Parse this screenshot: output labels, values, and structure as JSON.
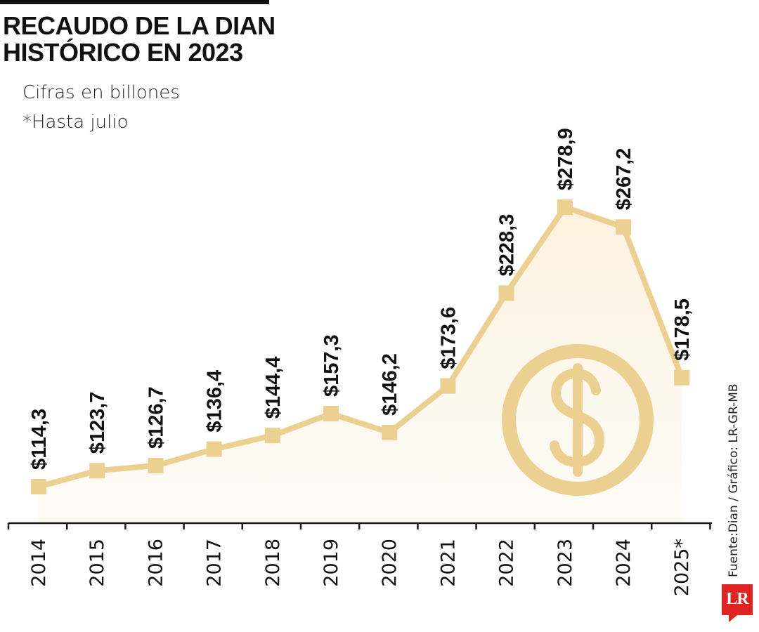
{
  "title_lines": [
    "RECAUDO DE LA DIAN",
    "HISTÓRICO EN 2023"
  ],
  "subtitle_lines": [
    "Cifras en billones",
    "*Hasta julio"
  ],
  "source_text": "Fuente:Dian / Gráfico: LR-GR-MB",
  "logo_text": "LR",
  "colors": {
    "line": "#ecd091",
    "area": "#fbf3e3",
    "axis": "#1a1a1a",
    "text": "#111111",
    "logo": "#e02424"
  },
  "chart_data": {
    "type": "line",
    "title": "RECAUDO DE LA DIAN HISTÓRICO EN 2023",
    "subtitle": "Cifras en billones",
    "note": "*Hasta julio",
    "categories": [
      "2014",
      "2015",
      "2016",
      "2017",
      "2018",
      "2019",
      "2020",
      "2021",
      "2022",
      "2023",
      "2024",
      "2025*"
    ],
    "values": [
      114.3,
      123.7,
      126.7,
      136.4,
      144.4,
      157.3,
      146.2,
      173.6,
      228.3,
      278.9,
      267.2,
      178.5
    ],
    "value_labels": [
      "$114,3",
      "$123,7",
      "$126,7",
      "$136,4",
      "$144,4",
      "$157,3",
      "$146,2",
      "$173,6",
      "$228,3",
      "$278,9",
      "$267,2",
      "$178,5"
    ],
    "marker": "square",
    "area_fill": true,
    "icon": "dollar-coin-icon",
    "grid": false,
    "legend": "none",
    "xlabel": "",
    "ylabel": ""
  }
}
